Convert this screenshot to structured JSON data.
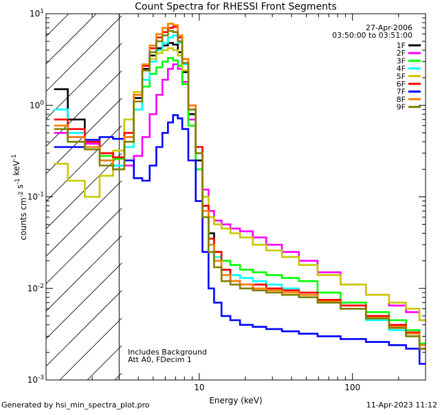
{
  "chart_data": {
    "type": "line",
    "title": "Count Spectra for RHESSI Front Segments",
    "xlabel": "Energy (keV)",
    "ylabel": "counts cm^-2 s^-1 keV^-1",
    "xscale": "log",
    "yscale": "log",
    "xlim": [
      1,
      300
    ],
    "ylim": [
      0.001,
      10
    ],
    "x_ticks": [
      {
        "value": 10,
        "label": "10"
      },
      {
        "value": 100,
        "label": "100"
      }
    ],
    "y_ticks": [
      {
        "value": 0.001,
        "mantissa": "10",
        "exp": "-3"
      },
      {
        "value": 0.01,
        "mantissa": "10",
        "exp": "-2"
      },
      {
        "value": 0.1,
        "mantissa": "10",
        "exp": "-1"
      },
      {
        "value": 1,
        "mantissa": "10",
        "exp": "0"
      },
      {
        "value": 10,
        "mantissa": "10",
        "exp": "1"
      }
    ],
    "shaded_region": {
      "x_start": 1,
      "x_end": 3,
      "style": "hatched"
    },
    "info_top": [
      "27-Apr-2006",
      "03:50:00 to 03:51:00"
    ],
    "info_bottom": [
      "Includes Background",
      "Att A0, FDecim 1"
    ],
    "energy_kev": [
      1.2,
      1.6,
      2.0,
      2.5,
      3.0,
      3.5,
      4.0,
      4.5,
      5.0,
      5.5,
      6.0,
      6.5,
      7.0,
      7.5,
      8.0,
      9.0,
      10.0,
      11.0,
      12.0,
      13.0,
      15.0,
      17.0,
      20.0,
      25.0,
      30.0,
      40.0,
      50.0,
      70.0,
      100.0,
      150.0,
      200.0,
      250.0,
      300.0
    ],
    "series": [
      {
        "name": "1F",
        "color": "#000000",
        "values": [
          1.5,
          0.7,
          0.4,
          0.25,
          0.22,
          0.45,
          1.2,
          2.5,
          3.5,
          4.2,
          4.5,
          4.8,
          4.6,
          3.8,
          2.3,
          0.8,
          0.25,
          0.08,
          0.04,
          0.025,
          0.016,
          0.012,
          0.011,
          0.011,
          0.01,
          0.0095,
          0.009,
          0.0075,
          0.0065,
          0.005,
          0.004,
          0.0033,
          0.0022
        ]
      },
      {
        "name": "2F",
        "color": "#ff00ff",
        "values": [
          0.5,
          0.45,
          0.38,
          0.3,
          0.27,
          0.22,
          0.28,
          0.45,
          0.8,
          1.3,
          1.9,
          2.5,
          2.8,
          2.5,
          1.8,
          0.7,
          0.3,
          0.12,
          0.07,
          0.055,
          0.05,
          0.045,
          0.042,
          0.036,
          0.03,
          0.025,
          0.02,
          0.015,
          0.011,
          0.0085,
          0.0065,
          0.0055,
          0.0045
        ]
      },
      {
        "name": "3F",
        "color": "#00ff00",
        "values": [
          0.6,
          0.4,
          0.35,
          0.28,
          0.26,
          0.4,
          0.9,
          1.6,
          2.2,
          2.6,
          3.0,
          3.3,
          3.1,
          2.7,
          1.7,
          0.6,
          0.2,
          0.06,
          0.035,
          0.025,
          0.02,
          0.018,
          0.016,
          0.015,
          0.014,
          0.013,
          0.012,
          0.009,
          0.007,
          0.0055,
          0.0045,
          0.0035,
          0.0025
        ]
      },
      {
        "name": "4F",
        "color": "#00ffff",
        "values": [
          0.9,
          0.5,
          0.35,
          0.25,
          0.22,
          0.35,
          0.9,
          1.9,
          3.0,
          4.0,
          4.8,
          5.5,
          5.8,
          4.8,
          2.8,
          0.9,
          0.3,
          0.07,
          0.035,
          0.022,
          0.016,
          0.014,
          0.013,
          0.012,
          0.011,
          0.01,
          0.009,
          0.007,
          0.006,
          0.0045,
          0.0035,
          0.003,
          0.0022
        ]
      },
      {
        "name": "5F",
        "color": "#c8c800",
        "values": [
          0.23,
          0.15,
          0.1,
          0.17,
          0.32,
          0.7,
          1.4,
          2.4,
          3.2,
          3.7,
          4.0,
          4.2,
          4.0,
          3.5,
          2.4,
          1.0,
          0.35,
          0.1,
          0.06,
          0.05,
          0.045,
          0.04,
          0.036,
          0.03,
          0.026,
          0.022,
          0.018,
          0.014,
          0.011,
          0.0085,
          0.007,
          0.006,
          0.0045
        ]
      },
      {
        "name": "6F",
        "color": "#ff0000",
        "values": [
          0.7,
          0.55,
          0.4,
          0.3,
          0.27,
          0.5,
          1.3,
          2.7,
          4.2,
          5.5,
          6.3,
          7.0,
          7.2,
          5.5,
          3.2,
          1.0,
          0.35,
          0.08,
          0.035,
          0.025,
          0.016,
          0.012,
          0.011,
          0.011,
          0.01,
          0.0095,
          0.009,
          0.0075,
          0.0065,
          0.005,
          0.004,
          0.0033,
          0.0022
        ]
      },
      {
        "name": "7F",
        "color": "#0000ff",
        "values": [
          0.35,
          0.35,
          0.42,
          0.45,
          0.43,
          0.25,
          0.16,
          0.15,
          0.22,
          0.35,
          0.5,
          0.65,
          0.78,
          0.72,
          0.55,
          0.25,
          0.09,
          0.025,
          0.01,
          0.007,
          0.005,
          0.0045,
          0.004,
          0.0038,
          0.0036,
          0.0034,
          0.0032,
          0.003,
          0.0028,
          0.0026,
          0.0024,
          0.0022,
          0.0015
        ]
      },
      {
        "name": "8F",
        "color": "#ff8000",
        "values": [
          0.6,
          0.45,
          0.35,
          0.25,
          0.2,
          0.45,
          1.3,
          2.8,
          4.5,
          6.0,
          7.0,
          7.8,
          7.5,
          5.8,
          3.2,
          1.0,
          0.3,
          0.07,
          0.03,
          0.02,
          0.014,
          0.012,
          0.011,
          0.01,
          0.0095,
          0.009,
          0.0085,
          0.0072,
          0.006,
          0.0048,
          0.0038,
          0.0032,
          0.0024
        ]
      },
      {
        "name": "9F",
        "color": "#808000",
        "values": [
          0.55,
          0.4,
          0.33,
          0.22,
          0.2,
          0.4,
          1.1,
          2.4,
          3.8,
          5.0,
          5.8,
          6.5,
          6.3,
          5.0,
          2.9,
          0.9,
          0.3,
          0.06,
          0.025,
          0.017,
          0.012,
          0.011,
          0.01,
          0.0095,
          0.009,
          0.0085,
          0.008,
          0.007,
          0.006,
          0.0047,
          0.0037,
          0.003,
          0.0022
        ]
      }
    ]
  },
  "footer": {
    "left": "Generated by hsi_min_spectra_plot.pro",
    "right": "11-Apr-2023 11:12"
  }
}
